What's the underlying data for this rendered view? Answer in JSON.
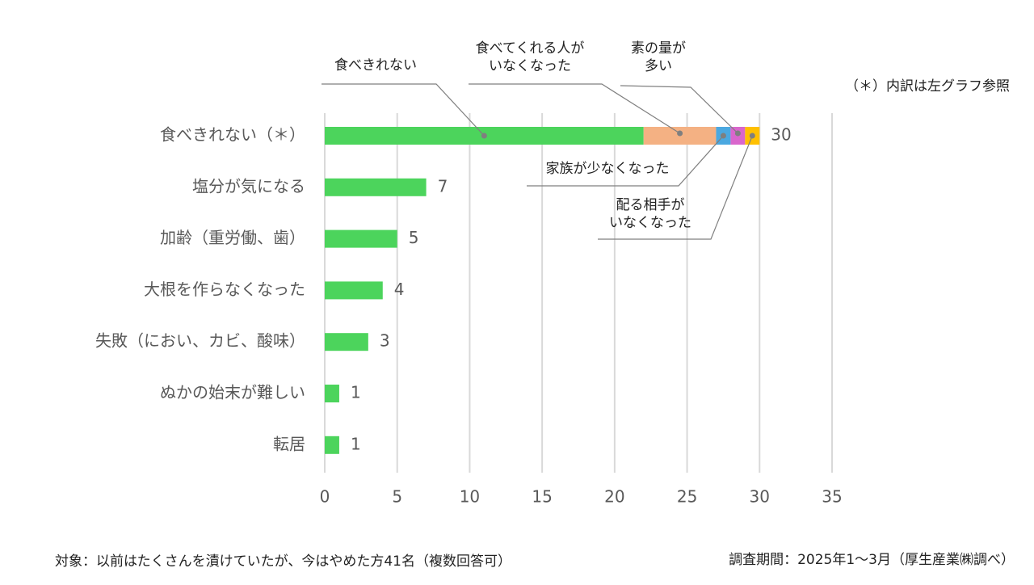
{
  "chart_data": {
    "type": "stacked_bar_horizontal",
    "categories": [
      "食べきれない（＊）",
      "塩分が気になる",
      "加齢（重労働、歯）",
      "大根を作らなくなった",
      "失敗（におい、カビ、酸味）",
      "ぬかの始末が難しい",
      "転居"
    ],
    "series": [
      {
        "name": "食べきれない",
        "color": "#4cd45c",
        "values": [
          22,
          7,
          5,
          4,
          3,
          1,
          1
        ]
      },
      {
        "name": "食べてくれる人が\nいなくなった",
        "color": "#f4b183",
        "values": [
          5,
          null,
          null,
          null,
          null,
          null,
          null
        ]
      },
      {
        "name": "家族が少なくなった",
        "color": "#4ba8e0",
        "values": [
          1,
          null,
          null,
          null,
          null,
          null,
          null
        ]
      },
      {
        "name": "素の量が\n多い",
        "color": "#d966cc",
        "values": [
          1,
          null,
          null,
          null,
          null,
          null,
          null
        ]
      },
      {
        "name": "配る相手が\nいなくなった",
        "color": "#ffc000",
        "values": [
          1,
          null,
          null,
          null,
          null,
          null,
          null
        ]
      }
    ],
    "totals": [
      30,
      7,
      5,
      4,
      3,
      1,
      1
    ],
    "xlim": [
      0,
      35
    ],
    "xticks": [
      0,
      5,
      10,
      15,
      20,
      25,
      30,
      35
    ],
    "grid": true,
    "note": "（＊）内訳は左グラフ参照",
    "footnote_left": "対象：以前はたくさんを漬けていたが、今はやめた方41名（複数回答可）",
    "footnote_right": "調査期間：2025年1～3月（厚生産業㈱調べ）"
  }
}
